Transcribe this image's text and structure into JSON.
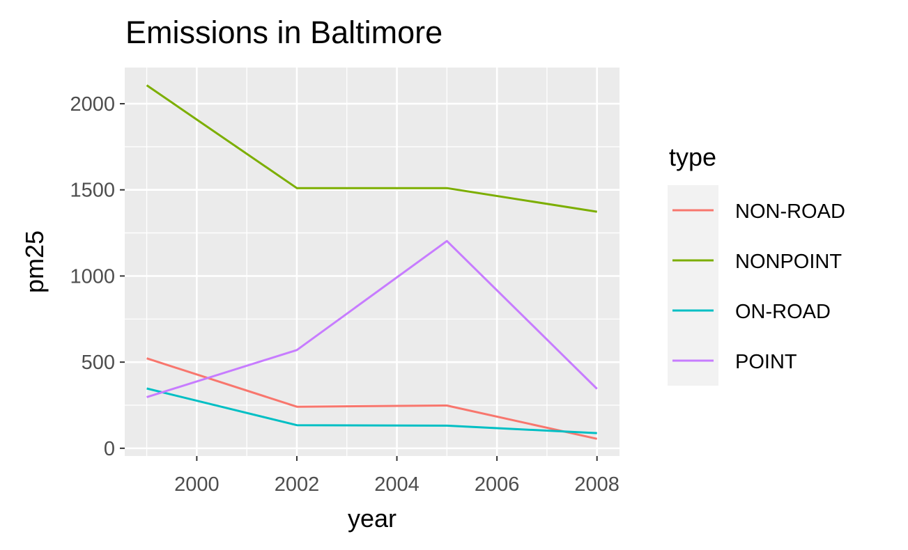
{
  "chart_data": {
    "type": "line",
    "title": "Emissions in Baltimore",
    "xlabel": "year",
    "ylabel": "pm25",
    "x": [
      1999,
      2002,
      2005,
      2008
    ],
    "xlim": [
      1998.56,
      2008.45
    ],
    "ylim": [
      -45,
      2210
    ],
    "xticks": [
      2000,
      2002,
      2004,
      2006,
      2008
    ],
    "yticks": [
      0,
      500,
      1000,
      1500,
      2000
    ],
    "xtick_labels": [
      "2000",
      "2002",
      "2004",
      "2006",
      "2008"
    ],
    "ytick_labels": [
      "0",
      "500",
      "1000",
      "1500",
      "2000"
    ],
    "grid": true,
    "legend": {
      "title": "type",
      "placement": "right"
    },
    "series": [
      {
        "name": "NON-ROAD",
        "color": "#F8766D",
        "values": [
          522,
          241,
          248,
          55
        ]
      },
      {
        "name": "NONPOINT",
        "color": "#7CAE00",
        "values": [
          2107,
          1510,
          1510,
          1373
        ]
      },
      {
        "name": "ON-ROAD",
        "color": "#00BFC4",
        "values": [
          347,
          134,
          131,
          88
        ]
      },
      {
        "name": "POINT",
        "color": "#C77CFF",
        "values": [
          297,
          570,
          1203,
          345
        ]
      }
    ]
  }
}
